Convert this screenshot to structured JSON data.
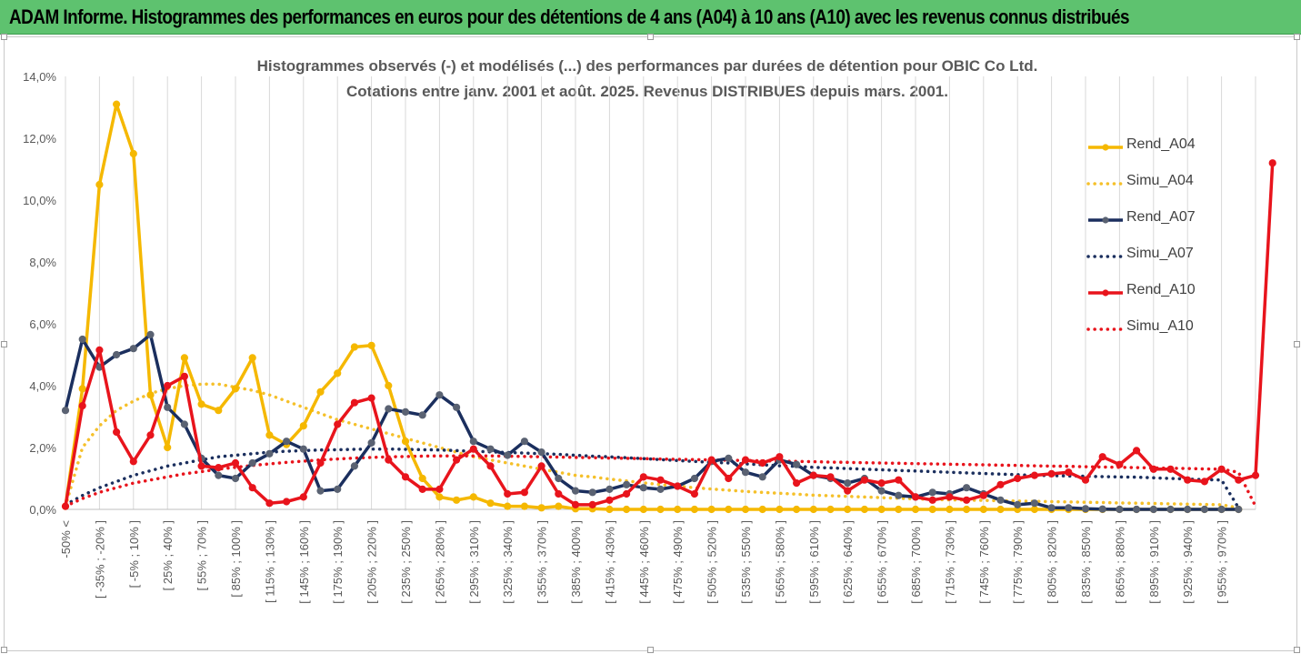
{
  "banner": {
    "title": "ADAM Informe. Histogrammes des performances en euros pour des détentions de 4 ans (A04) à 10 ans (A10) avec les revenus connus distribués"
  },
  "chart_data": {
    "type": "line",
    "title": "Histogrammes observés (-) et modélisés (...) des performances par durées de détention pour OBIC Co Ltd.",
    "subtitle": "Cotations entre janv. 2001 et août. 2025. Revenus DISTRIBUES depuis mars. 2001.",
    "xlabel": "",
    "ylabel": "",
    "ylim": [
      0,
      14
    ],
    "y_ticks": [
      "0,0%",
      "2,0%",
      "4,0%",
      "6,0%",
      "8,0%",
      "10,0%",
      "12,0%",
      "14,0%"
    ],
    "grid": "vertical",
    "legend_position": "right",
    "category_labels": [
      "-50% <",
      "[ -35% ; -20% ]",
      "[ -5% ; 10% ]",
      "[ 25% ; 40% ]",
      "[ 55% ; 70% ]",
      "[ 85% ; 100% ]",
      "[ 115% ; 130% ]",
      "[ 145% ; 160% ]",
      "[ 175% ; 190% ]",
      "[ 205% ; 220% ]",
      "[ 235% ; 250% ]",
      "[ 265% ; 280% ]",
      "[ 295% ; 310% ]",
      "[ 325% ; 340% ]",
      "[ 355% ; 370% ]",
      "[ 385% ; 400% ]",
      "[ 415% ; 430% ]",
      "[ 445% ; 460% ]",
      "[ 475% ; 490% ]",
      "[ 505% ; 520% ]",
      "[ 535% ; 550% ]",
      "[ 565% ; 580% ]",
      "[ 595% ; 610% ]",
      "[ 625% ; 640% ]",
      "[ 655% ; 670% ]",
      "[ 685% ; 700% ]",
      "[ 715% ; 730% ]",
      "[ 745% ; 760% ]",
      "[ 775% ; 790% ]",
      "[ 805% ; 820% ]",
      "[ 835% ; 850% ]",
      "[ 865% ; 880% ]",
      "[ 895% ; 910% ]",
      "[ 925% ; 940% ]",
      "[ 955% ; 970% ]"
    ],
    "series": [
      {
        "name": "Rend_A04",
        "style": "solid",
        "color": "#f5b800",
        "values": [
          0.1,
          3.9,
          10.5,
          13.1,
          11.5,
          3.7,
          2.0,
          4.9,
          3.4,
          3.2,
          3.9,
          4.9,
          2.4,
          2.1,
          2.7,
          3.8,
          4.4,
          5.25,
          5.3,
          4.0,
          2.2,
          1.0,
          0.4,
          0.3,
          0.4,
          0.2,
          0.1,
          0.1,
          0.05,
          0.1,
          0.02,
          0.02,
          0,
          0,
          0,
          0,
          0,
          0,
          0,
          0,
          0,
          0,
          0,
          0,
          0,
          0,
          0,
          0,
          0,
          0,
          0,
          0,
          0,
          0,
          0,
          0,
          0,
          0,
          0,
          0,
          0,
          0,
          0,
          0,
          0,
          0,
          0,
          0,
          0,
          0
        ]
      },
      {
        "name": "Simu_A04",
        "style": "dotted",
        "color": "#f5c02a",
        "values": [
          0.1,
          2.0,
          2.7,
          3.2,
          3.5,
          3.75,
          3.9,
          4.0,
          4.05,
          4.05,
          3.95,
          3.85,
          3.7,
          3.5,
          3.3,
          3.1,
          2.9,
          2.75,
          2.6,
          2.45,
          2.3,
          2.15,
          2.0,
          1.85,
          1.7,
          1.6,
          1.5,
          1.4,
          1.3,
          1.2,
          1.1,
          1.05,
          0.98,
          0.92,
          0.86,
          0.8,
          0.75,
          0.7,
          0.66,
          0.62,
          0.58,
          0.55,
          0.52,
          0.49,
          0.46,
          0.44,
          0.42,
          0.4,
          0.38,
          0.36,
          0.34,
          0.32,
          0.31,
          0.3,
          0.29,
          0.28,
          0.27,
          0.26,
          0.25,
          0.24,
          0.23,
          0.22,
          0.21,
          0.2,
          0.19,
          0.18,
          0.17,
          0.16,
          0.15,
          0.05
        ]
      },
      {
        "name": "Rend_A07",
        "style": "solid",
        "color": "#1b2f5e",
        "values": [
          3.2,
          5.5,
          4.6,
          5.0,
          5.2,
          5.65,
          3.3,
          2.75,
          1.65,
          1.1,
          1.0,
          1.5,
          1.8,
          2.2,
          1.95,
          0.6,
          0.65,
          1.4,
          2.15,
          3.25,
          3.15,
          3.05,
          3.7,
          3.3,
          2.2,
          1.95,
          1.75,
          2.2,
          1.85,
          1.0,
          0.6,
          0.55,
          0.65,
          0.8,
          0.7,
          0.65,
          0.75,
          1.0,
          1.55,
          1.65,
          1.2,
          1.05,
          1.6,
          1.45,
          1.1,
          1.0,
          0.85,
          1.0,
          0.6,
          0.45,
          0.4,
          0.55,
          0.5,
          0.7,
          0.5,
          0.3,
          0.15,
          0.2,
          0.05,
          0.05,
          0.02,
          0.01,
          0,
          0,
          0,
          0,
          0,
          0,
          0,
          0
        ]
      },
      {
        "name": "Simu_A07",
        "style": "dotted",
        "color": "#1b2f5e",
        "values": [
          0.15,
          0.45,
          0.7,
          0.9,
          1.1,
          1.25,
          1.4,
          1.5,
          1.6,
          1.7,
          1.75,
          1.8,
          1.85,
          1.88,
          1.9,
          1.92,
          1.93,
          1.94,
          1.95,
          1.95,
          1.94,
          1.93,
          1.92,
          1.9,
          1.88,
          1.86,
          1.84,
          1.82,
          1.8,
          1.78,
          1.75,
          1.72,
          1.7,
          1.67,
          1.64,
          1.61,
          1.58,
          1.55,
          1.52,
          1.5,
          1.47,
          1.44,
          1.41,
          1.39,
          1.36,
          1.34,
          1.32,
          1.3,
          1.28,
          1.26,
          1.24,
          1.22,
          1.2,
          1.18,
          1.16,
          1.14,
          1.12,
          1.1,
          1.09,
          1.08,
          1.07,
          1.06,
          1.05,
          1.04,
          1.02,
          1.0,
          0.98,
          0.96,
          0.95,
          0.05
        ]
      },
      {
        "name": "Rend_A10",
        "style": "solid",
        "color": "#e8141c",
        "values": [
          0.1,
          3.35,
          5.15,
          2.5,
          1.55,
          2.4,
          4.0,
          4.3,
          1.4,
          1.35,
          1.5,
          0.7,
          0.2,
          0.25,
          0.4,
          1.5,
          2.75,
          3.45,
          3.6,
          1.6,
          1.05,
          0.65,
          0.65,
          1.6,
          1.95,
          1.4,
          0.5,
          0.55,
          1.4,
          0.5,
          0.15,
          0.15,
          0.3,
          0.5,
          1.05,
          0.95,
          0.75,
          0.5,
          1.6,
          1.0,
          1.6,
          1.5,
          1.7,
          0.85,
          1.1,
          1.05,
          0.6,
          0.95,
          0.85,
          0.95,
          0.4,
          0.3,
          0.4,
          0.3,
          0.45,
          0.8,
          1.0,
          1.1,
          1.15,
          1.2,
          0.95,
          1.7,
          1.45,
          1.9,
          1.3,
          1.3,
          0.95,
          0.9,
          1.3,
          0.95,
          1.1,
          11.2
        ]
      },
      {
        "name": "Simu_A10",
        "style": "dotted",
        "color": "#e8141c",
        "values": [
          0.1,
          0.35,
          0.55,
          0.7,
          0.85,
          0.95,
          1.05,
          1.15,
          1.22,
          1.3,
          1.36,
          1.42,
          1.47,
          1.52,
          1.56,
          1.6,
          1.63,
          1.66,
          1.68,
          1.7,
          1.71,
          1.72,
          1.73,
          1.73,
          1.73,
          1.73,
          1.72,
          1.71,
          1.7,
          1.69,
          1.68,
          1.67,
          1.66,
          1.65,
          1.64,
          1.63,
          1.62,
          1.61,
          1.6,
          1.59,
          1.58,
          1.57,
          1.56,
          1.55,
          1.54,
          1.53,
          1.52,
          1.51,
          1.5,
          1.49,
          1.48,
          1.47,
          1.46,
          1.45,
          1.44,
          1.43,
          1.42,
          1.41,
          1.4,
          1.39,
          1.38,
          1.37,
          1.36,
          1.35,
          1.34,
          1.33,
          1.32,
          1.31,
          1.3,
          1.2,
          0.1
        ]
      }
    ]
  },
  "legend": {
    "items": [
      {
        "label": "Rend_A04",
        "color": "#f5b800",
        "style": "solid"
      },
      {
        "label": "Simu_A04",
        "color": "#f5c02a",
        "style": "dotted"
      },
      {
        "label": "Rend_A07",
        "color": "#1b2f5e",
        "style": "solid"
      },
      {
        "label": "Simu_A07",
        "color": "#1b2f5e",
        "style": "dotted"
      },
      {
        "label": "Rend_A10",
        "color": "#e8141c",
        "style": "solid"
      },
      {
        "label": "Simu_A10",
        "color": "#e8141c",
        "style": "dotted"
      }
    ]
  }
}
